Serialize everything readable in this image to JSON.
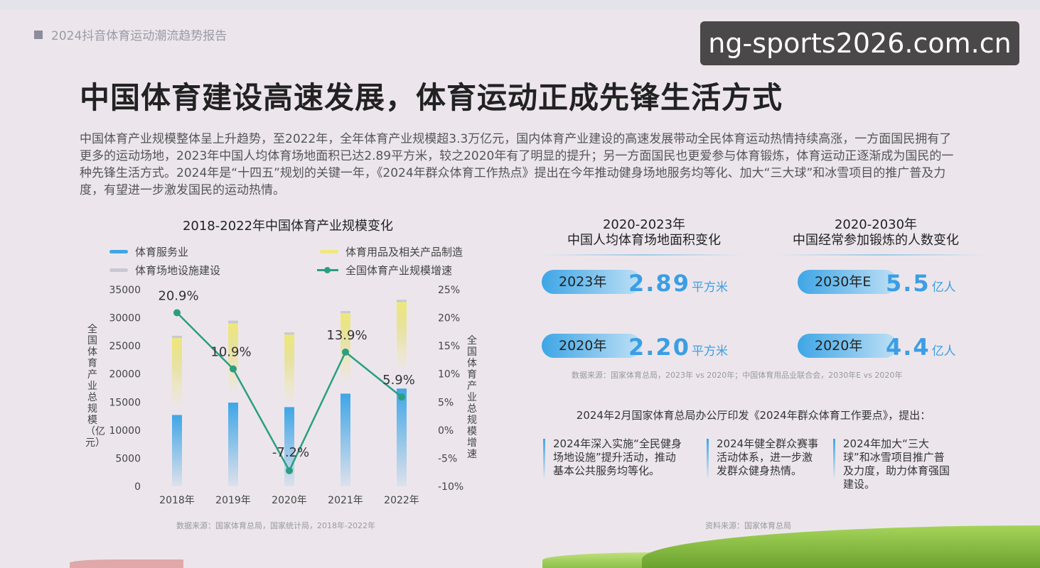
{
  "header": {
    "label": "2024抖音体育运动潮流趋势报告"
  },
  "watermark": "ng-sports2026.com.cn",
  "title": "中国体育建设高速发展，体育运动正成先锋生活方式",
  "paragraph": "中国体育产业规模整体呈上升趋势，至2022年，全年体育产业规模超3.3万亿元，国内体育产业建设的高速发展带动全民体育运动热情持续高涨，一方面国民拥有了更多的运动场地，2023年中国人均体育场地面积已达2.89平方米，较之2020年有了明显的提升；另一方面国民也更爱参与体育锻炼，体育运动正逐渐成为国民的一种先锋生活方式。2024年是“十四五”规划的关键一年，《2024年群众体育工作热点》提出在今年推动健身场地服务均等化、加大“三大球”和冰雪项目的推广普及力度，有望进一步激发国民的运动热情。",
  "chart_data": {
    "type": "bar",
    "title": "2018-2022年中国体育产业规模变化",
    "categories": [
      "2018年",
      "2019年",
      "2020年",
      "2021年",
      "2022年"
    ],
    "series": [
      {
        "name": "体育服务业",
        "kind": "bar",
        "values": [
          12700,
          14900,
          14100,
          16500,
          17400
        ],
        "color": "#3ea6e6"
      },
      {
        "name": "体育用品及相关产品制造",
        "kind": "bar",
        "values": [
          26400,
          29000,
          27000,
          30800,
          32800
        ],
        "color": "#efe87a"
      },
      {
        "name": "体育场地设施建设",
        "kind": "bar",
        "values": [
          26800,
          29500,
          27400,
          31200,
          33200
        ],
        "color": "#c8c8d4"
      },
      {
        "name": "全国体育产业规模增速",
        "kind": "line",
        "axis": "right",
        "values": [
          20.9,
          10.9,
          -7.2,
          13.9,
          5.9
        ],
        "color": "#2a9e82"
      }
    ],
    "point_labels": [
      "20.9%",
      "10.9%",
      "-7.2%",
      "13.9%",
      "5.9%"
    ],
    "ylabel": "全国体育产业总规模（亿元）",
    "y2label": "全国体育产业总规模增速",
    "ylim": [
      0,
      35000
    ],
    "y2lim": [
      -10,
      25
    ],
    "yticks": [
      "0",
      "5000",
      "10000",
      "15000",
      "20000",
      "25000",
      "30000",
      "35000"
    ],
    "y2ticks": [
      "-10%",
      "-5%",
      "0%",
      "5%",
      "10%",
      "15%",
      "20%",
      "25%"
    ],
    "legend_position": "top",
    "grid": false,
    "source": "数据来源：国家体育总局，国家统计局，2018年-2022年"
  },
  "stats": {
    "area": {
      "title1": "2020-2023年",
      "title2": "中国人均体育场地面积变化",
      "rows": [
        {
          "year": "2023年",
          "value": "2.89",
          "unit": "平方米"
        },
        {
          "year": "2020年",
          "value": "2.20",
          "unit": "平方米"
        }
      ]
    },
    "exercise": {
      "title1": "2020-2030年",
      "title2": "中国经常参加锻炼的人数变化",
      "rows": [
        {
          "year": "2030年E",
          "value": "5.5",
          "unit": "亿人"
        },
        {
          "year": "2020年",
          "value": "4.4",
          "unit": "亿人"
        }
      ]
    },
    "source": "数据来源：国家体育总局，2023年 vs 2020年；中国体育用品业联合会，2030年E vs 2020年"
  },
  "notice": {
    "heading": "2024年2月国家体育总局办公厅印发《2024年群众体育工作要点》，提出：",
    "cards": [
      "2024年深入实施“全民健身场地设施”提升活动，推动基本公共服务均等化。",
      "2024年健全群众赛事活动体系，进一步激发群众健身热情。",
      "2024年加大“三大球”和冰雪项目推广普及力度，助力体育强国建设。"
    ],
    "source": "资料来源：国家体育总局"
  }
}
